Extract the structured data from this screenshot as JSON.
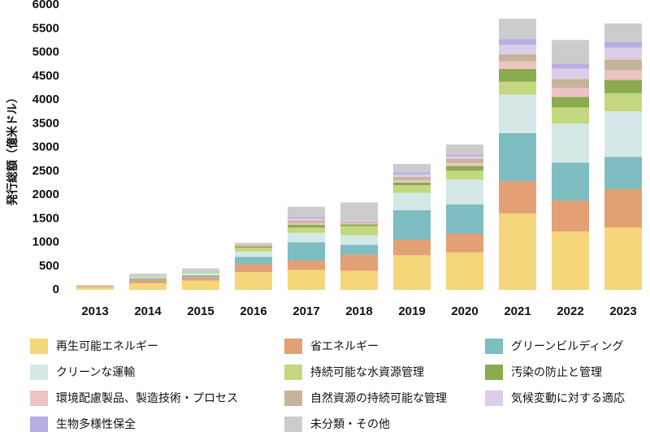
{
  "chart_data": {
    "type": "bar",
    "stacked": true,
    "ylabel": "発行総額（億米ドル）",
    "xlabel": "",
    "ylim": [
      0,
      6000
    ],
    "yticks": [
      0,
      500,
      1000,
      1500,
      2000,
      2500,
      3000,
      3500,
      4000,
      4500,
      5000,
      5500,
      6000
    ],
    "grid": false,
    "legend_position": "bottom",
    "categories": [
      "2013",
      "2014",
      "2015",
      "2016",
      "2017",
      "2018",
      "2019",
      "2020",
      "2021",
      "2022",
      "2023"
    ],
    "series": [
      {
        "name": "再生可能エネルギー",
        "color": "#F5D67A",
        "values": [
          55,
          140,
          195,
          375,
          420,
          400,
          730,
          790,
          1610,
          1230,
          1310
        ]
      },
      {
        "name": "省エネルギー",
        "color": "#E2A074",
        "values": [
          25,
          75,
          75,
          170,
          200,
          340,
          330,
          390,
          680,
          650,
          810
        ]
      },
      {
        "name": "グリーンビルディング",
        "color": "#7EBDC2",
        "values": [
          0,
          30,
          40,
          150,
          380,
          210,
          620,
          620,
          1010,
          800,
          680
        ]
      },
      {
        "name": "クリーンな運輸",
        "color": "#D4E8E8",
        "values": [
          0,
          15,
          40,
          110,
          200,
          200,
          360,
          520,
          810,
          820,
          960
        ]
      },
      {
        "name": "持続可能な水資源管理",
        "color": "#C3D87F",
        "values": [
          0,
          20,
          30,
          80,
          110,
          190,
          160,
          190,
          270,
          340,
          380
        ]
      },
      {
        "name": "汚染の防止と管理",
        "color": "#8BAB4F",
        "values": [
          0,
          0,
          5,
          30,
          60,
          40,
          60,
          100,
          270,
          220,
          280
        ]
      },
      {
        "name": "環境配慮製品、製造技術・プロセス",
        "color": "#EDC3C3",
        "values": [
          0,
          0,
          5,
          15,
          40,
          25,
          50,
          60,
          160,
          190,
          200
        ]
      },
      {
        "name": "自然資源の持続可能な管理",
        "color": "#C6B49A",
        "values": [
          0,
          0,
          5,
          20,
          50,
          30,
          70,
          90,
          150,
          190,
          230
        ]
      },
      {
        "name": "気候変動に対する適応",
        "color": "#DCCDE8",
        "values": [
          0,
          0,
          5,
          10,
          40,
          20,
          50,
          50,
          200,
          220,
          250
        ]
      },
      {
        "name": "生物多様性保全",
        "color": "#B7AEE5",
        "values": [
          0,
          0,
          5,
          10,
          30,
          10,
          40,
          40,
          120,
          100,
          120
        ]
      },
      {
        "name": "未分類・その他",
        "color": "#CCCCCC",
        "values": [
          20,
          60,
          45,
          20,
          220,
          375,
          180,
          210,
          430,
          500,
          390
        ]
      }
    ]
  }
}
